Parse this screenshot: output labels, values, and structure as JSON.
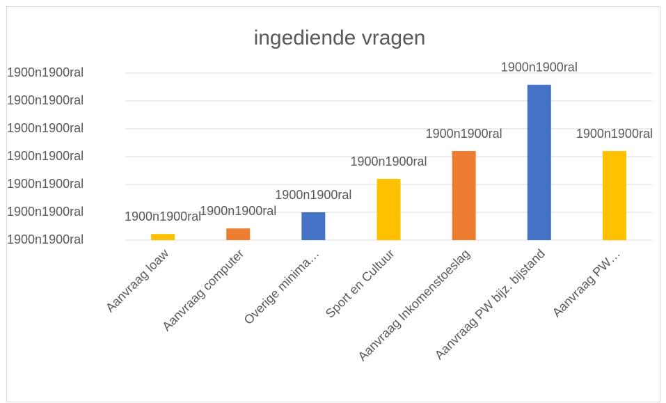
{
  "chart_data": {
    "type": "bar",
    "title": "ingediende vragen",
    "categories": [
      "Aanvraag loaw",
      "Aanvraag computer",
      "Overige minima…",
      "Sport en Cultuur",
      "Aanvraag Inkomenstoeslag",
      "Aanvraag PW bijz. bijstand",
      "Aanvraag PW…"
    ],
    "values": [
      0.22,
      0.42,
      1.0,
      2.2,
      3.2,
      5.58,
      3.2
    ],
    "value_labels": [
      "1900n1900ral",
      "1900n1900ral",
      "1900n1900ral",
      "1900n1900ral",
      "1900n1900ral",
      "1900n1900ral",
      "1900n1900ral"
    ],
    "colors": [
      "#ffc000",
      "#ed7d31",
      "#4472c4",
      "#ffc000",
      "#ed7d31",
      "#4472c4",
      "#ffc000"
    ],
    "ylim": [
      0,
      6
    ],
    "yticks": [
      {
        "value": 0,
        "label": "1900n1900ral"
      },
      {
        "value": 1,
        "label": "1900n1900ral"
      },
      {
        "value": 2,
        "label": "1900n1900ral"
      },
      {
        "value": 3,
        "label": "1900n1900ral"
      },
      {
        "value": 4,
        "label": "1900n1900ral"
      },
      {
        "value": 5,
        "label": "1900n1900ral"
      },
      {
        "value": 6,
        "label": "1900n1900ral"
      }
    ],
    "grid": true
  }
}
